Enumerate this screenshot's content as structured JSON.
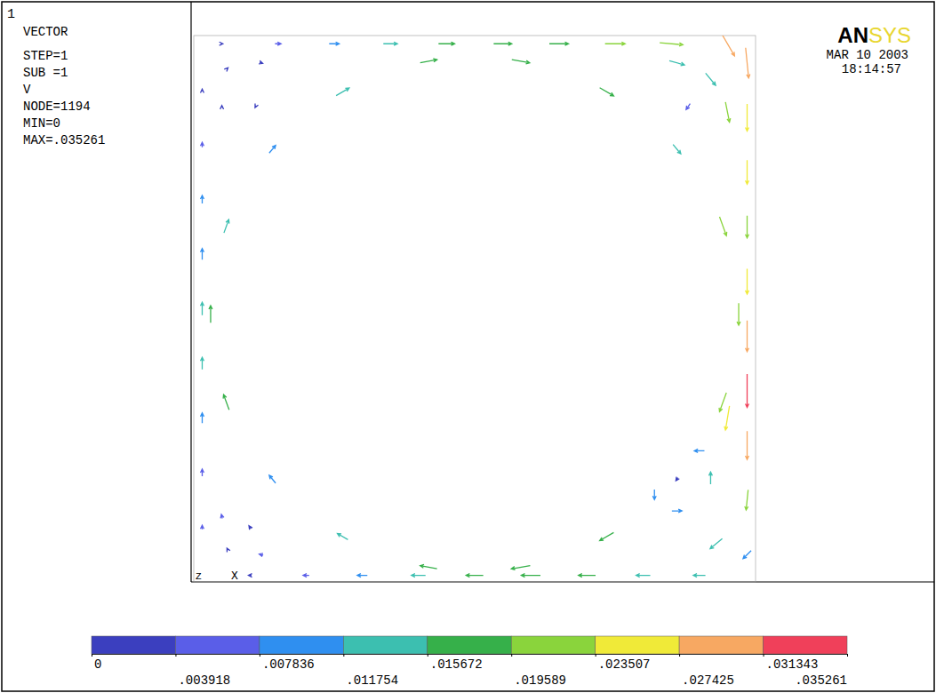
{
  "chart_data": {
    "type": "vector",
    "window_number": "1",
    "info": [
      "VECTOR",
      "STEP=1",
      "SUB =1",
      "V",
      "NODE=1194",
      "MIN=0",
      "MAX=.035261"
    ],
    "logo": "ANSYS",
    "date": "MAR 10 2003",
    "time": "18:14:57",
    "triad": [
      "Z",
      "X"
    ],
    "xlim": [
      0,
      1
    ],
    "ylim": [
      0,
      1
    ],
    "tick_labels": false,
    "vectors": {
      "x": [
        0.97,
        0.942,
        0.86,
        0.735,
        0.582,
        0.418,
        0.265,
        0.14,
        0.058,
        0.03,
        0.058,
        0.14,
        0.265,
        0.418,
        0.582,
        0.735,
        0.86,
        0.942,
        0.985,
        0.985,
        0.985,
        0.985,
        0.985,
        0.985,
        0.985,
        0.985,
        0.985,
        0.985,
        0.05,
        0.15,
        0.25,
        0.35,
        0.45,
        0.55,
        0.65,
        0.75,
        0.85,
        0.95,
        0.015,
        0.015,
        0.015,
        0.015,
        0.015,
        0.015,
        0.015,
        0.015,
        0.015,
        0.1,
        0.2,
        0.3,
        0.4,
        0.5,
        0.6,
        0.7,
        0.8,
        0.9,
        0.06,
        0.12,
        0.05,
        0.11,
        0.92,
        0.86,
        0.95,
        0.88,
        0.06,
        0.12,
        0.05,
        0.1,
        0.82,
        0.86,
        0.92,
        0.9,
        0.93,
        0.95
      ],
      "y": [
        0.49,
        0.651,
        0.792,
        0.897,
        0.953,
        0.953,
        0.897,
        0.792,
        0.651,
        0.49,
        0.329,
        0.188,
        0.083,
        0.027,
        0.027,
        0.083,
        0.188,
        0.329,
        0.95,
        0.85,
        0.75,
        0.65,
        0.55,
        0.45,
        0.35,
        0.25,
        0.15,
        0.05,
        0.985,
        0.985,
        0.985,
        0.985,
        0.985,
        0.985,
        0.985,
        0.985,
        0.985,
        0.985,
        0.1,
        0.2,
        0.3,
        0.4,
        0.5,
        0.6,
        0.7,
        0.8,
        0.9,
        0.012,
        0.012,
        0.012,
        0.012,
        0.012,
        0.012,
        0.012,
        0.012,
        0.012,
        0.94,
        0.95,
        0.87,
        0.87,
        0.92,
        0.95,
        0.86,
        0.87,
        0.06,
        0.05,
        0.12,
        0.1,
        0.16,
        0.13,
        0.19,
        0.24,
        0.07,
        0.3
      ],
      "u": [
        0,
        0.0068,
        0.0077,
        0.0139,
        0.0177,
        0.0167,
        0.013,
        0.0064,
        0.0048,
        0,
        -0.0055,
        -0.0064,
        -0.0104,
        -0.0167,
        -0.0187,
        -0.0139,
        -0.002,
        -0.0068,
        0.003,
        0,
        0,
        0,
        0,
        0,
        0,
        0,
        -0.002,
        -0.008,
        0.002,
        0.006,
        0.01,
        0.014,
        0.016,
        0.018,
        0.019,
        0.02,
        0.023,
        0.014,
        0,
        0,
        0,
        0,
        0,
        0,
        0,
        0,
        0,
        -0.003,
        -0.006,
        -0.01,
        -0.014,
        -0.017,
        -0.019,
        -0.017,
        -0.014,
        -0.012,
        0.001,
        0.003,
        0,
        -0.001,
        0.01,
        0.015,
        0.004,
        -0.004,
        -0.001,
        -0.004,
        -0.001,
        -0.002,
        0,
        0.01,
        0,
        -0.01,
        -0.012,
        -0.004
      ],
      "v": [
        -0.022,
        -0.0188,
        -0.0092,
        -0.008,
        -0.0031,
        0.003,
        0.0075,
        0.0077,
        0.0132,
        0.017,
        0.015,
        0.0077,
        0.006,
        0.003,
        -0.0033,
        -0.008,
        -0.003,
        -0.0188,
        -0.03,
        -0.027,
        -0.024,
        -0.022,
        -0.025,
        -0.031,
        -0.033,
        -0.028,
        -0.02,
        -0.008,
        0,
        0,
        0,
        0,
        0,
        0,
        0,
        0,
        -0.002,
        -0.024,
        0.004,
        0.007,
        0.01,
        0.012,
        0.013,
        0.011,
        0.008,
        0.005,
        0.002,
        0,
        0,
        0,
        0,
        0,
        0,
        0,
        0,
        0,
        0.001,
        -0.001,
        0.002,
        -0.002,
        -0.012,
        -0.004,
        -0.02,
        -0.006,
        0.002,
        0.001,
        0.004,
        0.003,
        -0.01,
        0,
        0.012,
        0,
        -0.01,
        -0.024
      ]
    },
    "colorbar": {
      "range": [
        0,
        0.035261
      ],
      "ticks": [
        0,
        {
          "value": 0.003918,
          "label": ".003918"
        },
        {
          "value": 0.007836,
          "label": ".007836"
        },
        {
          "value": 0.011754,
          "label": ".011754"
        },
        {
          "value": 0.015672,
          "label": ".015672"
        },
        {
          "value": 0.019589,
          "label": ".019589"
        },
        {
          "value": 0.023507,
          "label": ".023507"
        },
        {
          "value": 0.027425,
          "label": ".027425"
        },
        {
          "value": 0.031343,
          "label": ".031343"
        },
        {
          "value": 0.035261,
          "label": ".035261"
        }
      ],
      "colors": [
        "#3b3fbf",
        "#5a5ee8",
        "#2f8ff0",
        "#3cbfb0",
        "#36b04a",
        "#8ad43c",
        "#f0ea38",
        "#f7a862",
        "#f0405a"
      ]
    }
  }
}
